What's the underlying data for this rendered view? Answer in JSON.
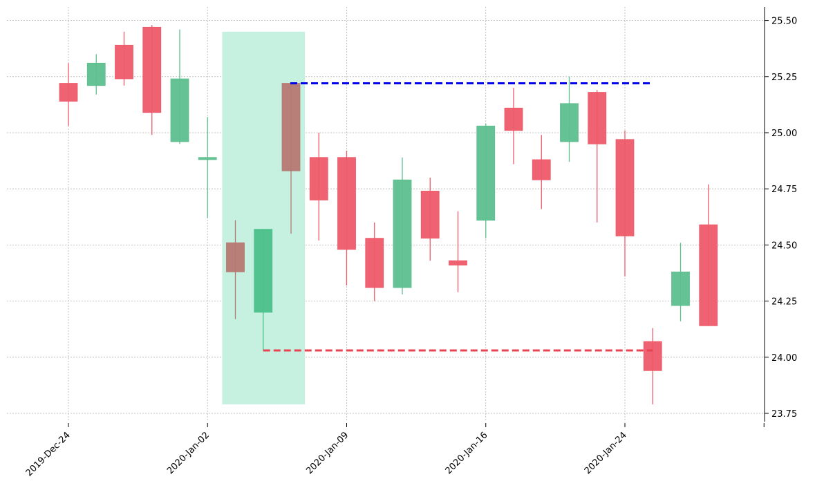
{
  "chart_data": {
    "type": "candlestick",
    "title": "",
    "xlabel": "",
    "ylabel": "",
    "ylim": [
      23.72,
      25.56
    ],
    "grid": true,
    "x_tick_labels": [
      "2019-Dec-24",
      "2020-Jan-02",
      "2020-Jan-09",
      "2020-Jan-16",
      "2020-Jan-24"
    ],
    "x_tick_positions": [
      0,
      5,
      10,
      15,
      20,
      25
    ],
    "y_ticks": [
      23.75,
      24.0,
      24.25,
      24.5,
      24.75,
      25.0,
      25.25,
      25.5
    ],
    "y_tick_labels": [
      "23.75",
      "24.00",
      "24.25",
      "24.50",
      "24.75",
      "25.00",
      "25.25",
      "25.50"
    ],
    "candles": [
      {
        "i": 0,
        "open": 25.22,
        "high": 25.31,
        "low": 25.03,
        "close": 25.14,
        "color": "red"
      },
      {
        "i": 1,
        "open": 25.21,
        "high": 25.35,
        "low": 25.17,
        "close": 25.31,
        "color": "green"
      },
      {
        "i": 2,
        "open": 25.39,
        "high": 25.45,
        "low": 25.21,
        "close": 25.24,
        "color": "red"
      },
      {
        "i": 3,
        "open": 25.47,
        "high": 25.48,
        "low": 24.99,
        "close": 25.09,
        "color": "red"
      },
      {
        "i": 4,
        "open": 24.96,
        "high": 25.46,
        "low": 24.95,
        "close": 25.24,
        "color": "green"
      },
      {
        "i": 5,
        "open": 24.88,
        "high": 25.07,
        "low": 24.62,
        "close": 24.89,
        "color": "green"
      },
      {
        "i": 6,
        "open": 24.51,
        "high": 24.61,
        "low": 24.17,
        "close": 24.38,
        "color": "brown"
      },
      {
        "i": 7,
        "open": 24.2,
        "high": 24.57,
        "low": 24.03,
        "close": 24.57,
        "color": "green-highlight"
      },
      {
        "i": 8,
        "open": 25.22,
        "high": 25.22,
        "low": 24.55,
        "close": 24.83,
        "color": "brown"
      },
      {
        "i": 9,
        "open": 24.89,
        "high": 25.0,
        "low": 24.52,
        "close": 24.7,
        "color": "red"
      },
      {
        "i": 10,
        "open": 24.89,
        "high": 24.92,
        "low": 24.32,
        "close": 24.48,
        "color": "red"
      },
      {
        "i": 11,
        "open": 24.53,
        "high": 24.6,
        "low": 24.25,
        "close": 24.31,
        "color": "red"
      },
      {
        "i": 12,
        "open": 24.31,
        "high": 24.89,
        "low": 24.28,
        "close": 24.79,
        "color": "green"
      },
      {
        "i": 13,
        "open": 24.74,
        "high": 24.8,
        "low": 24.43,
        "close": 24.53,
        "color": "red"
      },
      {
        "i": 14,
        "open": 24.43,
        "high": 24.65,
        "low": 24.29,
        "close": 24.41,
        "color": "red"
      },
      {
        "i": 15,
        "open": 24.61,
        "high": 25.04,
        "low": 24.53,
        "close": 25.03,
        "color": "green"
      },
      {
        "i": 16,
        "open": 25.11,
        "high": 25.2,
        "low": 24.86,
        "close": 25.01,
        "color": "red"
      },
      {
        "i": 17,
        "open": 24.88,
        "high": 24.99,
        "low": 24.66,
        "close": 24.79,
        "color": "red"
      },
      {
        "i": 18,
        "open": 24.96,
        "high": 25.25,
        "low": 24.87,
        "close": 25.13,
        "color": "green"
      },
      {
        "i": 19,
        "open": 25.18,
        "high": 25.19,
        "low": 24.6,
        "close": 24.95,
        "color": "red"
      },
      {
        "i": 20,
        "open": 24.97,
        "high": 25.01,
        "low": 24.36,
        "close": 24.54,
        "color": "red"
      },
      {
        "i": 21,
        "open": 24.07,
        "high": 24.13,
        "low": 23.79,
        "close": 23.94,
        "color": "red"
      },
      {
        "i": 22,
        "open": 24.23,
        "high": 24.51,
        "low": 24.16,
        "close": 24.38,
        "color": "green"
      },
      {
        "i": 23,
        "open": 24.59,
        "high": 24.77,
        "low": 24.14,
        "close": 24.14,
        "color": "red"
      }
    ],
    "highlight_span": {
      "from_index": 5.5,
      "to_index": 8.5,
      "y_low": 23.79,
      "y_high": 25.45,
      "color": "#c6f1e0"
    },
    "resistance_line": {
      "from_index": 8,
      "to_index": 21,
      "value": 25.22,
      "color": "#0000ee"
    },
    "support_line": {
      "from_index": 7,
      "to_index": 21,
      "value": 24.03,
      "color": "#e84352"
    },
    "colors": {
      "red": "#ee5a6a",
      "green": "#5dbf8e",
      "green-highlight": "#4cc08a",
      "brown": "#b67872",
      "grid": "#b4b4b4",
      "axis": "#000000"
    }
  }
}
